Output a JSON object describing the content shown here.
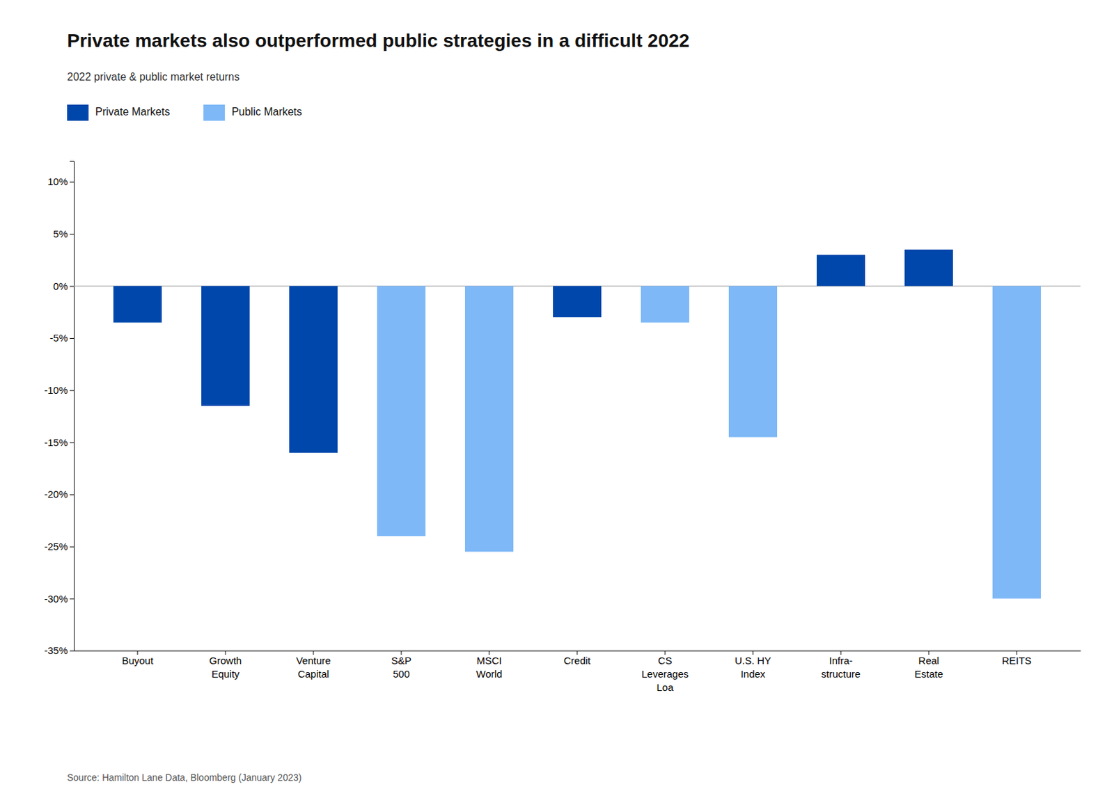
{
  "chart_data": {
    "type": "bar",
    "title": "Private markets also outperformed public strategies in a difficult 2022",
    "subtitle": "2022 private & public market returns",
    "annotations": [
      "Source: Hamilton Lane Data, Bloomberg (January 2023)"
    ],
    "categories": [
      "Buyout",
      "Growth\nEquity",
      "Venture\nCapital",
      "S&P\n500",
      "MSCI\nWorld",
      "Credit",
      "CS\nLeverages\nLoa",
      "U.S. HY\nIndex",
      "Infra-\nstructure",
      "Real\nEstate",
      "REITS"
    ],
    "series": [
      {
        "name": "Private Markets",
        "color": "#0047AB",
        "values": [
          -3.5,
          -11.5,
          -16.0,
          null,
          null,
          -3.0,
          null,
          null,
          3.0,
          3.5,
          null
        ]
      },
      {
        "name": "Public Markets",
        "color": "#7EB8F7",
        "values": [
          null,
          null,
          null,
          -24.0,
          -25.5,
          null,
          -3.5,
          -14.5,
          null,
          null,
          -30.0
        ]
      }
    ],
    "stacked": true,
    "legend": "top-left",
    "grid": false,
    "ylim": [
      -35,
      12
    ],
    "yticks": [
      {
        "value": 10,
        "label": "10%"
      },
      {
        "value": 5,
        "label": "5%"
      },
      {
        "value": 0,
        "label": "0%"
      },
      {
        "value": -5,
        "label": "-5%"
      },
      {
        "value": -10,
        "label": "-10%"
      },
      {
        "value": -15,
        "label": "-15%"
      },
      {
        "value": -20,
        "label": "-20%"
      },
      {
        "value": -25,
        "label": "-25%"
      },
      {
        "value": -30,
        "label": "-30%"
      },
      {
        "value": -35,
        "label": "-35%"
      }
    ]
  }
}
